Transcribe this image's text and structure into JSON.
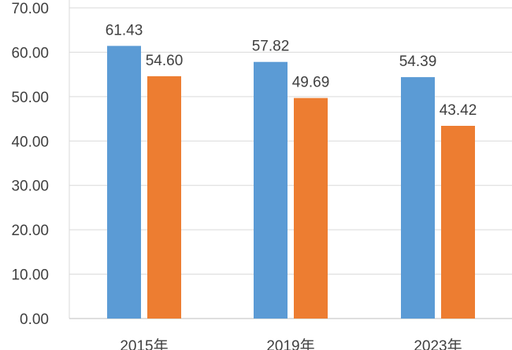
{
  "chart_data": {
    "type": "bar",
    "categories": [
      "2015年",
      "2019年",
      "2023年"
    ],
    "series": [
      {
        "color": "#5b9bd5",
        "values": [
          61.43,
          57.82,
          54.39
        ]
      },
      {
        "color": "#ed7d31",
        "values": [
          54.6,
          49.69,
          43.42
        ]
      }
    ],
    "data_labels": [
      [
        "61.43",
        "57.82",
        "54.39"
      ],
      [
        "54.60",
        "49.69",
        "43.42"
      ]
    ],
    "ylim": [
      0,
      70
    ],
    "y_ticks": [
      "0.00",
      "10.00",
      "20.00",
      "30.00",
      "40.00",
      "50.00",
      "60.00",
      "70.00"
    ],
    "grid": true,
    "grid_color": "#d9d9d9",
    "axis_color": "#bfbfbf",
    "title": "",
    "xlabel": "",
    "ylabel": ""
  }
}
